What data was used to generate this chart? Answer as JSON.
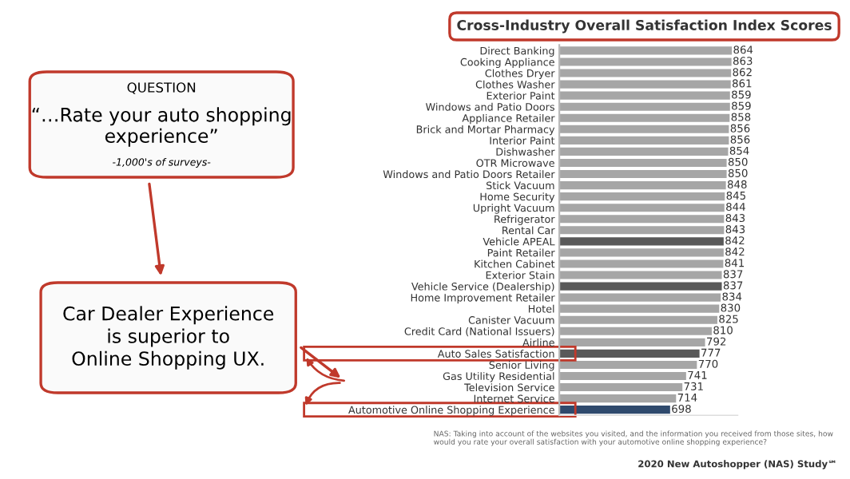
{
  "chart_data": {
    "type": "bar",
    "orientation": "horizontal",
    "title": "Cross-Industry Overall Satisfaction Index Scores",
    "categories": [
      "Direct Banking",
      "Cooking Appliance",
      "Clothes Dryer",
      "Clothes Washer",
      "Exterior Paint",
      "Windows and Patio Doors",
      "Appliance Retailer",
      "Brick and Mortar Pharmacy",
      "Interior Paint",
      "Dishwasher",
      "OTR Microwave",
      "Windows and Patio Doors Retailer",
      "Stick Vacuum",
      "Home Security",
      "Upright Vacuum",
      "Refrigerator",
      "Rental Car",
      "Vehicle APEAL",
      "Paint Retailer",
      "Kitchen Cabinet",
      "Exterior Stain",
      "Vehicle Service (Dealership)",
      "Home Improvement Retailer",
      "Hotel",
      "Canister Vacuum",
      "Credit Card (National Issuers)",
      "Airline",
      "Auto Sales Satisfaction",
      "Senior Living",
      "Gas Utility Residential",
      "Television Service",
      "Internet Service",
      "Automotive Online Shopping Experience"
    ],
    "values": [
      864,
      863,
      862,
      861,
      859,
      859,
      858,
      856,
      856,
      854,
      850,
      850,
      848,
      845,
      844,
      843,
      843,
      842,
      842,
      841,
      837,
      837,
      834,
      830,
      825,
      810,
      792,
      777,
      770,
      741,
      731,
      714,
      698
    ],
    "colors": [
      "#a6a6a6",
      "#a6a6a6",
      "#a6a6a6",
      "#a6a6a6",
      "#a6a6a6",
      "#a6a6a6",
      "#a6a6a6",
      "#a6a6a6",
      "#a6a6a6",
      "#a6a6a6",
      "#a6a6a6",
      "#a6a6a6",
      "#a6a6a6",
      "#a6a6a6",
      "#a6a6a6",
      "#a6a6a6",
      "#a6a6a6",
      "#595959",
      "#a6a6a6",
      "#a6a6a6",
      "#a6a6a6",
      "#595959",
      "#a6a6a6",
      "#a6a6a6",
      "#a6a6a6",
      "#a6a6a6",
      "#a6a6a6",
      "#595959",
      "#a6a6a6",
      "#a6a6a6",
      "#a6a6a6",
      "#a6a6a6",
      "#2f4a6d"
    ],
    "xlim": [
      400,
      880
    ],
    "tick_labels": "y",
    "data_labels": true,
    "grid": false,
    "legend": false,
    "annotations": [
      "QUESTION",
      "“…Rate your auto shopping experience”",
      "-1,000's of surveys-",
      "Car Dealer Experience\nis superior to\nOnline Shopping UX.",
      "NAS: Taking into account of the websites you visited, and the information you received from those sites, how would you rate your overall satisfaction with your automotive online shopping experience?",
      "2020 New Autoshopper (NAS) Study℠"
    ]
  }
}
